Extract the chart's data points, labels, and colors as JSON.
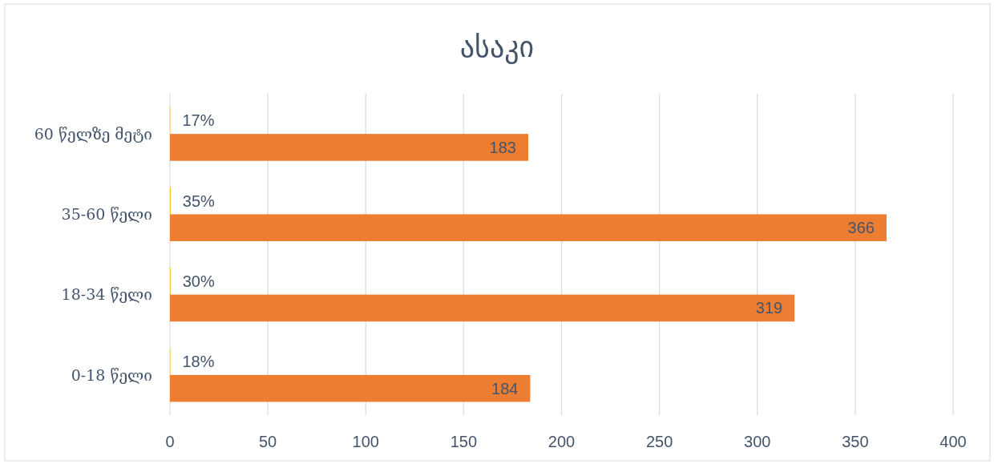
{
  "chart_data": {
    "type": "bar",
    "orientation": "horizontal",
    "title": "ასაკი",
    "categories": [
      "60 წელზე მეტი",
      "35-60 წელი",
      "18-34 წელი",
      "0-18 წელი"
    ],
    "series": [
      {
        "color": "#ffc000",
        "values": [
          0.17,
          0.35,
          0.3,
          0.18
        ],
        "value_labels": [
          "17%",
          "35%",
          "30%",
          "18%"
        ]
      },
      {
        "color": "#ed7d31",
        "values": [
          183,
          366,
          319,
          184
        ],
        "value_labels": [
          "183",
          "366",
          "319",
          "184"
        ]
      }
    ],
    "xlim": [
      0,
      400
    ],
    "xticks": [
      0,
      50,
      100,
      150,
      200,
      250,
      300,
      350,
      400
    ],
    "grid": "x"
  }
}
